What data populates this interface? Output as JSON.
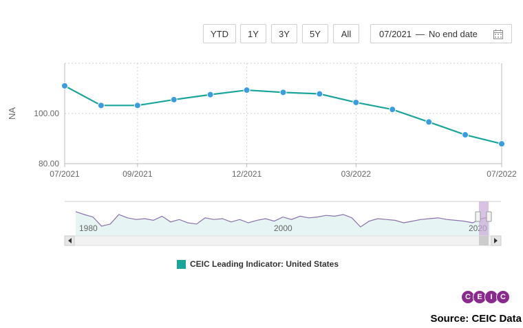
{
  "toolbar": {
    "buttons": [
      "YTD",
      "1Y",
      "3Y",
      "5Y",
      "All"
    ],
    "date_start": "07/2021",
    "date_end": "No end date",
    "calendar_icon": "calendar-icon"
  },
  "chart_data": {
    "type": "line",
    "xlabel": "",
    "ylabel": "NA",
    "x": [
      "07/2021",
      "08/2021",
      "09/2021",
      "10/2021",
      "11/2021",
      "12/2021",
      "01/2022",
      "02/2022",
      "03/2022",
      "04/2022",
      "05/2022",
      "06/2022",
      "07/2022"
    ],
    "x_tick_labels": [
      "07/2021",
      "09/2021",
      "12/2021",
      "03/2022",
      "07/2022"
    ],
    "y_tick_labels": [
      "80.00",
      "100.00"
    ],
    "ylim": [
      80,
      120
    ],
    "series": [
      {
        "name": "CEIC Leading Indicator: United States",
        "color": "#1aa59a",
        "marker_color": "#3a9de0",
        "values": [
          111,
          103.2,
          103.2,
          105.5,
          107.5,
          109.3,
          108.4,
          107.8,
          104.4,
          101.6,
          96.6,
          91.5,
          87.9
        ]
      }
    ],
    "grid": true
  },
  "navigator": {
    "labels": [
      "1980",
      "2000",
      "2020"
    ],
    "scroll_left_icon": "arrow-left-icon",
    "scroll_right_icon": "arrow-right-icon"
  },
  "legend": {
    "label": "CEIC Leading Indicator: United States"
  },
  "logo": {
    "letters": [
      "C",
      "E",
      "I",
      "C"
    ]
  },
  "source": "Source: CEIC Data"
}
